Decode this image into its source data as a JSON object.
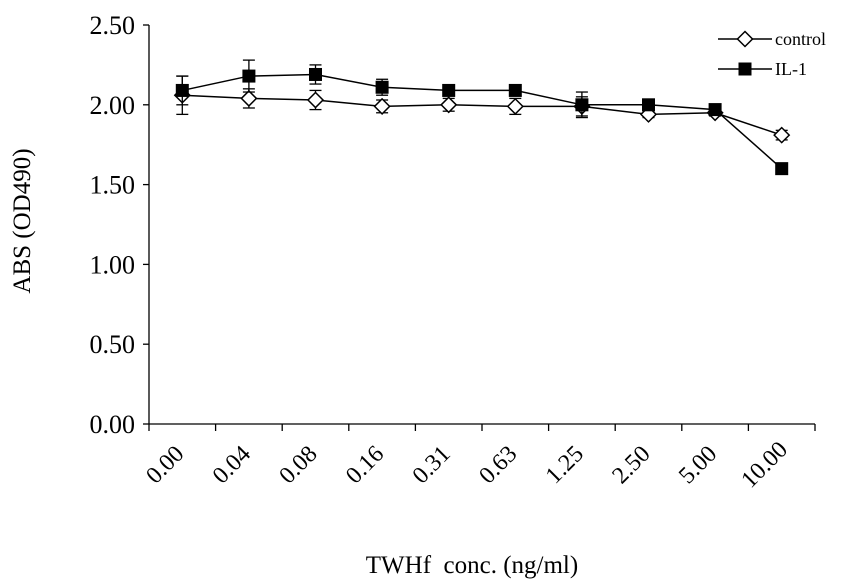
{
  "chart_data": {
    "type": "line",
    "title": "",
    "xlabel": "TWHf  conc. (ng/ml)",
    "ylabel": "ABS (OD490)",
    "categories": [
      "0.00",
      "0.04",
      "0.08",
      "0.16",
      "0.31",
      "0.63",
      "1.25",
      "2.50",
      "5.00",
      "10.00"
    ],
    "ylim": [
      0,
      2.5
    ],
    "yticks": [
      "0.00",
      "0.50",
      "1.00",
      "1.50",
      "2.00",
      "2.50"
    ],
    "grid": false,
    "legend_position": "top-right",
    "series": [
      {
        "name": "control",
        "marker": "open-diamond",
        "color": "#000000",
        "values": [
          2.06,
          2.04,
          2.03,
          1.99,
          2.0,
          1.99,
          1.99,
          1.94,
          1.95,
          1.81
        ],
        "errors": [
          0.12,
          0.06,
          0.06,
          0.04,
          0.04,
          0.05,
          0.06,
          0.02,
          0.02,
          0.03
        ]
      },
      {
        "name": "IL-1",
        "marker": "filled-square",
        "color": "#000000",
        "values": [
          2.09,
          2.18,
          2.19,
          2.11,
          2.09,
          2.09,
          2.0,
          2.0,
          1.97,
          1.6
        ],
        "errors": [
          0.09,
          0.1,
          0.06,
          0.05,
          0.03,
          0.03,
          0.08,
          0.02,
          0.02,
          0.03
        ]
      }
    ]
  }
}
